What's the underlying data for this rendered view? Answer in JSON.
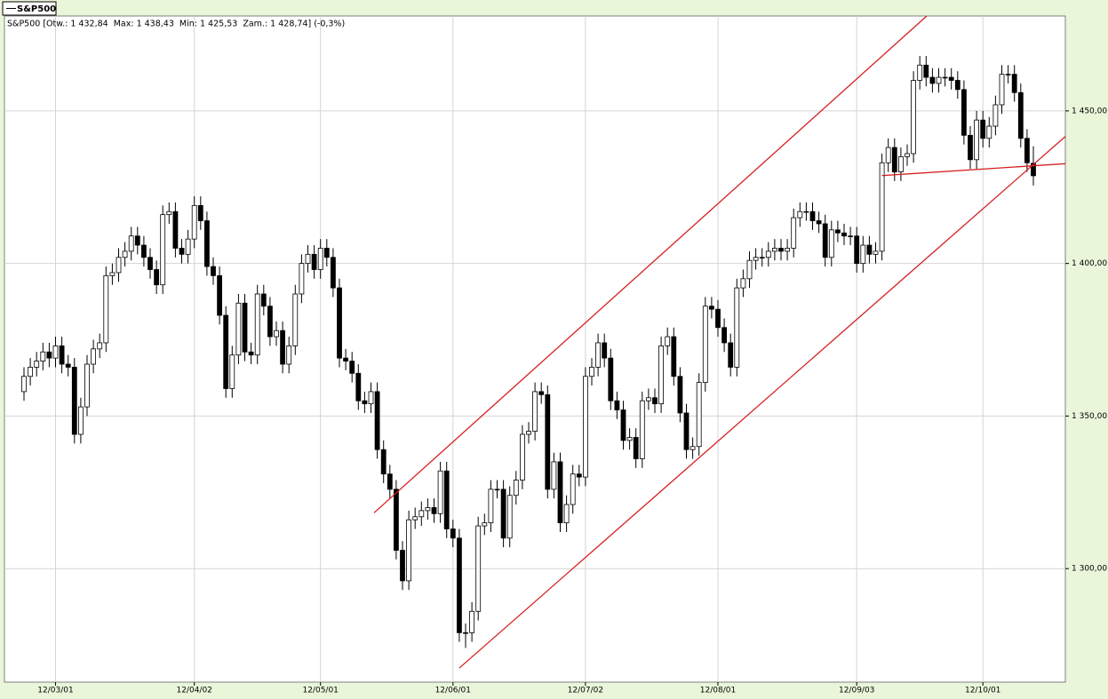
{
  "chart_data": {
    "type": "candlestick",
    "info": "S&P500 [Otw.: 1 432,84  Max: 1 438,43  Min: 1 425,53  Zam.: 1 428,74] (-0,3%)",
    "categories": [
      null,
      null,
      null,
      null,
      null,
      "12/03/01",
      null,
      null,
      null,
      null,
      null,
      null,
      null,
      null,
      null,
      null,
      null,
      null,
      null,
      null,
      null,
      null,
      null,
      null,
      null,
      null,
      null,
      "12/04/02",
      null,
      null,
      null,
      null,
      null,
      null,
      null,
      null,
      null,
      null,
      null,
      null,
      null,
      null,
      null,
      null,
      null,
      null,
      null,
      "12/05/01",
      null,
      null,
      null,
      null,
      null,
      null,
      null,
      null,
      null,
      null,
      null,
      null,
      null,
      null,
      null,
      null,
      null,
      null,
      null,
      null,
      "12/06/01",
      null,
      null,
      null,
      null,
      null,
      null,
      null,
      null,
      null,
      null,
      null,
      null,
      null,
      null,
      null,
      null,
      null,
      null,
      null,
      null,
      "12/07/02",
      null,
      null,
      null,
      null,
      null,
      null,
      null,
      null,
      null,
      null,
      null,
      null,
      null,
      null,
      null,
      null,
      null,
      null,
      null,
      null,
      "12/08/01",
      null,
      null,
      null,
      null,
      null,
      null,
      null,
      null,
      null,
      null,
      null,
      null,
      null,
      null,
      null,
      null,
      null,
      null,
      null,
      null,
      null,
      "12/09/03",
      null,
      null,
      null,
      null,
      null,
      null,
      null,
      null,
      null,
      null,
      null,
      null,
      null,
      null,
      null,
      null,
      null,
      null,
      null,
      "12/10/01",
      null,
      null,
      null,
      null,
      null,
      null,
      null,
      null
    ],
    "series": [
      {
        "name": "S&P500",
        "up_color": "#ffffff",
        "down_color": "#000000",
        "open": [
          1358,
          1363,
          1366,
          1368,
          1371,
          1369,
          1373,
          1367,
          1366,
          1344,
          1353,
          1367,
          1372,
          1374,
          1396,
          1397,
          1402,
          1404,
          1409,
          1406,
          1402,
          1398,
          1393,
          1416,
          1417,
          1405,
          1403,
          1408,
          1419,
          1414,
          1399,
          1396,
          1383,
          1359,
          1370,
          1387,
          1371,
          1370,
          1390,
          1386,
          1376,
          1378,
          1367,
          1373,
          1390,
          1400,
          1403,
          1398,
          1405,
          1402,
          1392,
          1369,
          1368,
          1364,
          1355,
          1354,
          1358,
          1339,
          1331,
          1326,
          1306,
          1296,
          1316,
          1317,
          1319,
          1320,
          1318,
          1332,
          1313,
          1310,
          1279,
          1279,
          1286,
          1314,
          1315,
          1326,
          1326,
          1310,
          1324,
          1329,
          1344,
          1345,
          1358,
          1357,
          1326,
          1335,
          1315,
          1321,
          1331,
          1330,
          1363,
          1366,
          1374,
          1369,
          1355,
          1352,
          1342,
          1343,
          1336,
          1355,
          1356,
          1354,
          1373,
          1376,
          1363,
          1351,
          1339,
          1340,
          1361,
          1386,
          1385,
          1379,
          1374,
          1366,
          1392,
          1395,
          1401,
          1402,
          1402,
          1404,
          1405,
          1404,
          1405,
          1415,
          1417,
          1417,
          1414,
          1413,
          1402,
          1411,
          1410,
          1409,
          1409,
          1400,
          1406,
          1403,
          1404,
          1433,
          1438,
          1430,
          1435,
          1436,
          1460,
          1465,
          1461,
          1459,
          1461,
          1461,
          1460,
          1457,
          1442,
          1434,
          1447,
          1441,
          1445,
          1452,
          1462,
          1462,
          1456,
          1441,
          1432.84
        ],
        "high": [
          1366,
          1369,
          1371,
          1374,
          1374,
          1376,
          1376,
          1370,
          1369,
          1356,
          1370,
          1375,
          1377,
          1399,
          1400,
          1405,
          1407,
          1412,
          1412,
          1409,
          1405,
          1401,
          1419,
          1420,
          1420,
          1408,
          1411,
          1422,
          1422,
          1417,
          1402,
          1399,
          1386,
          1373,
          1390,
          1390,
          1374,
          1393,
          1393,
          1389,
          1381,
          1381,
          1376,
          1393,
          1403,
          1406,
          1406,
          1408,
          1408,
          1405,
          1395,
          1372,
          1371,
          1367,
          1358,
          1361,
          1361,
          1342,
          1334,
          1329,
          1309,
          1319,
          1320,
          1322,
          1323,
          1323,
          1335,
          1335,
          1316,
          1313,
          1282,
          1289,
          1317,
          1318,
          1329,
          1329,
          1329,
          1327,
          1332,
          1347,
          1348,
          1361,
          1361,
          1360,
          1338,
          1338,
          1324,
          1334,
          1334,
          1366,
          1369,
          1377,
          1377,
          1372,
          1358,
          1355,
          1346,
          1346,
          1358,
          1359,
          1359,
          1376,
          1379,
          1379,
          1366,
          1354,
          1343,
          1364,
          1389,
          1389,
          1388,
          1382,
          1377,
          1395,
          1398,
          1404,
          1405,
          1405,
          1407,
          1408,
          1408,
          1408,
          1418,
          1420,
          1420,
          1420,
          1417,
          1416,
          1414,
          1414,
          1413,
          1412,
          1412,
          1409,
          1409,
          1407,
          1436,
          1441,
          1441,
          1438,
          1439,
          1463,
          1468,
          1468,
          1464,
          1464,
          1464,
          1464,
          1463,
          1460,
          1445,
          1450,
          1450,
          1448,
          1455,
          1465,
          1465,
          1465,
          1459,
          1444,
          1438.43
        ],
        "low": [
          1355,
          1360,
          1363,
          1365,
          1366,
          1366,
          1364,
          1363,
          1341,
          1341,
          1350,
          1364,
          1369,
          1371,
          1393,
          1394,
          1399,
          1401,
          1403,
          1399,
          1395,
          1390,
          1390,
          1413,
          1402,
          1400,
          1400,
          1405,
          1411,
          1396,
          1393,
          1380,
          1356,
          1356,
          1367,
          1368,
          1367,
          1367,
          1383,
          1373,
          1373,
          1364,
          1364,
          1370,
          1387,
          1397,
          1395,
          1395,
          1399,
          1389,
          1366,
          1365,
          1361,
          1352,
          1351,
          1351,
          1336,
          1328,
          1323,
          1303,
          1293,
          1293,
          1313,
          1314,
          1316,
          1315,
          1315,
          1310,
          1307,
          1276,
          1274,
          1276,
          1283,
          1311,
          1312,
          1323,
          1307,
          1307,
          1321,
          1326,
          1341,
          1342,
          1354,
          1323,
          1323,
          1312,
          1312,
          1318,
          1327,
          1327,
          1360,
          1363,
          1366,
          1352,
          1349,
          1339,
          1339,
          1333,
          1333,
          1352,
          1351,
          1351,
          1370,
          1360,
          1348,
          1336,
          1336,
          1337,
          1358,
          1382,
          1376,
          1371,
          1363,
          1363,
          1389,
          1392,
          1398,
          1399,
          1399,
          1401,
          1401,
          1401,
          1402,
          1412,
          1414,
          1411,
          1410,
          1399,
          1399,
          1407,
          1406,
          1406,
          1397,
          1397,
          1400,
          1400,
          1401,
          1430,
          1427,
          1427,
          1432,
          1433,
          1457,
          1458,
          1456,
          1456,
          1458,
          1457,
          1454,
          1439,
          1431,
          1431,
          1438,
          1438,
          1442,
          1449,
          1459,
          1453,
          1438,
          1430,
          1425.53
        ],
        "close": [
          1363,
          1366,
          1368,
          1371,
          1369,
          1373,
          1367,
          1366,
          1344,
          1353,
          1367,
          1372,
          1374,
          1396,
          1397,
          1402,
          1404,
          1409,
          1406,
          1402,
          1398,
          1393,
          1416,
          1417,
          1405,
          1403,
          1408,
          1419,
          1414,
          1399,
          1396,
          1383,
          1359,
          1370,
          1387,
          1371,
          1370,
          1390,
          1386,
          1376,
          1378,
          1367,
          1373,
          1390,
          1400,
          1403,
          1398,
          1405,
          1402,
          1392,
          1369,
          1368,
          1364,
          1355,
          1354,
          1358,
          1339,
          1331,
          1326,
          1306,
          1296,
          1316,
          1317,
          1319,
          1320,
          1318,
          1332,
          1313,
          1310,
          1279,
          1279,
          1286,
          1314,
          1315,
          1326,
          1326,
          1310,
          1324,
          1329,
          1344,
          1345,
          1358,
          1357,
          1326,
          1335,
          1315,
          1321,
          1331,
          1330,
          1363,
          1366,
          1374,
          1369,
          1355,
          1352,
          1342,
          1343,
          1336,
          1355,
          1356,
          1354,
          1373,
          1376,
          1363,
          1351,
          1339,
          1340,
          1361,
          1386,
          1385,
          1379,
          1374,
          1366,
          1392,
          1395,
          1401,
          1402,
          1402,
          1404,
          1405,
          1404,
          1405,
          1415,
          1417,
          1417,
          1414,
          1413,
          1402,
          1411,
          1410,
          1409,
          1409,
          1400,
          1406,
          1403,
          1404,
          1433,
          1438,
          1430,
          1435,
          1436,
          1460,
          1465,
          1461,
          1459,
          1461,
          1461,
          1460,
          1457,
          1442,
          1434,
          1447,
          1441,
          1445,
          1452,
          1462,
          1462,
          1456,
          1441,
          1433,
          1428.74
        ]
      }
    ],
    "trendlines": [
      {
        "color": "#d42020",
        "x": [
          55.5,
          143.1
        ],
        "y": [
          1318.3,
          1481.1
        ]
      },
      {
        "color": "#d42020",
        "x": [
          69,
          170.8
        ],
        "y": [
          1267.4,
          1452
        ]
      },
      {
        "color": "#d42020",
        "x": [
          136,
          170.4
        ],
        "y": [
          1428.8,
          1433.4
        ]
      }
    ],
    "ylim": [
      1262.8,
      1481.1
    ],
    "yticks": [
      {
        "value": 1300,
        "label": "1 300,00"
      },
      {
        "value": 1350,
        "label": "1 350,00"
      },
      {
        "value": 1400,
        "label": "1 400,00"
      },
      {
        "value": 1450,
        "label": "1 450,00"
      }
    ],
    "grid": true
  }
}
